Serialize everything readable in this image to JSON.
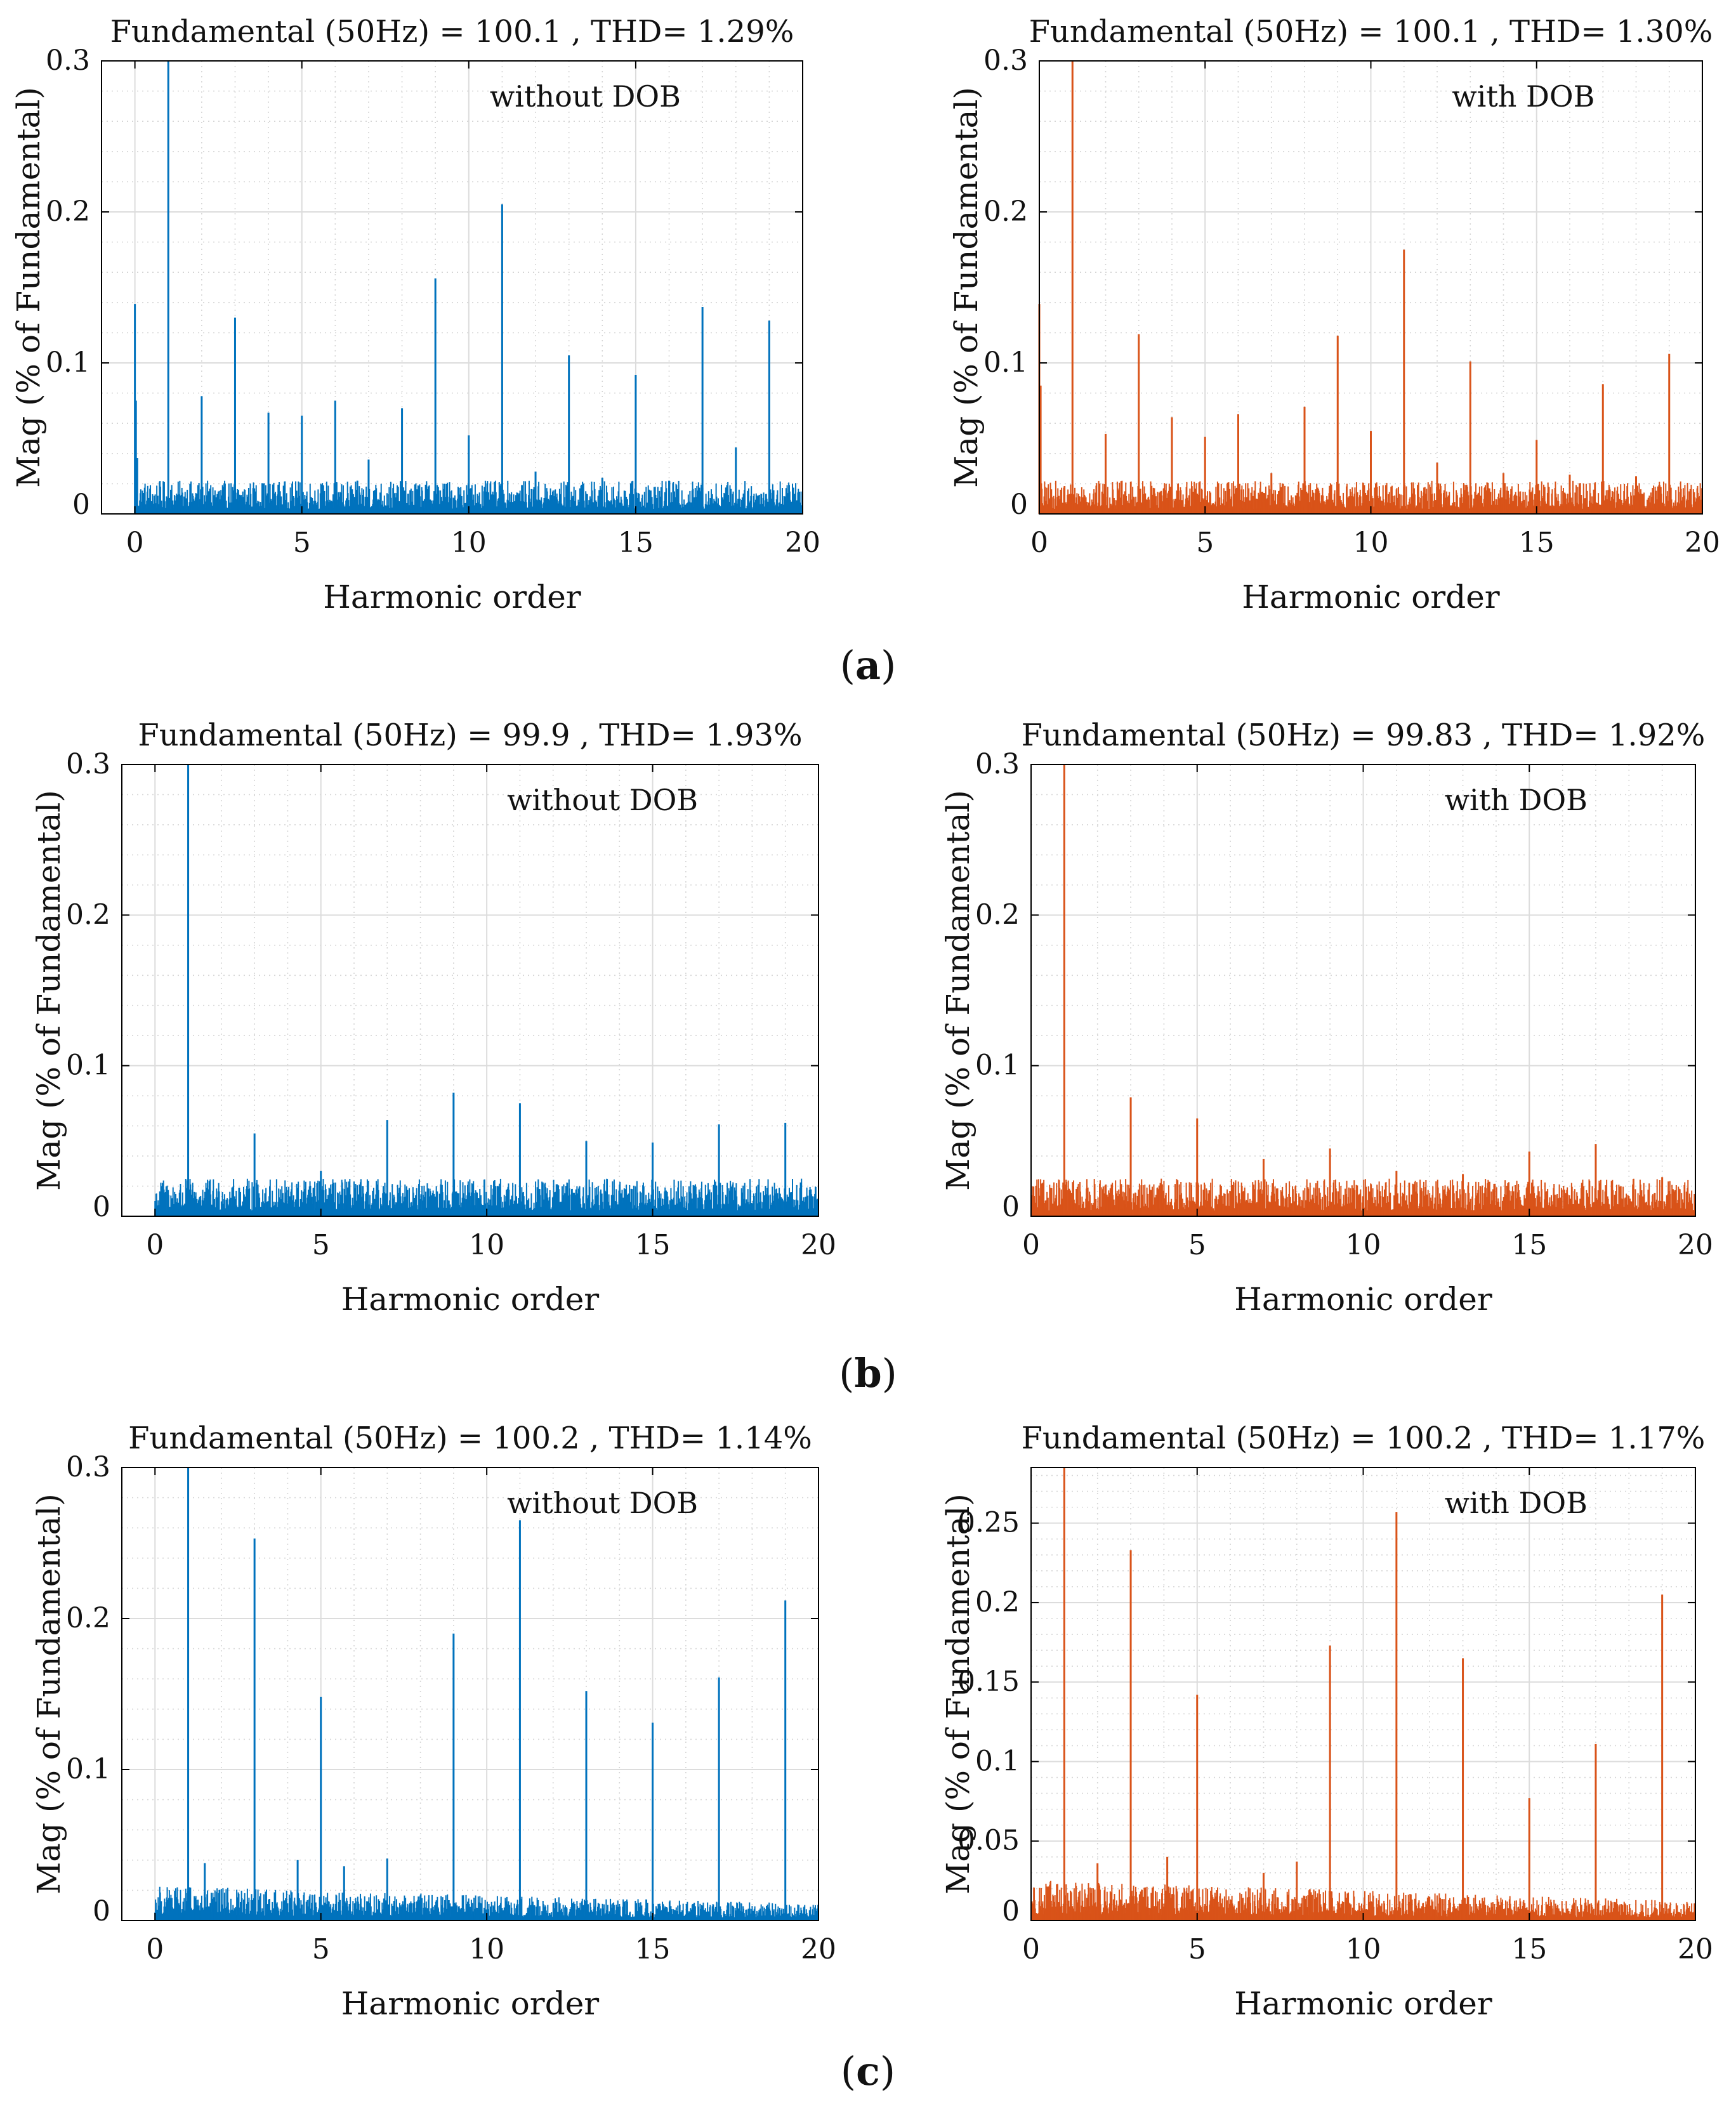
{
  "figure": {
    "panel_labels": [
      {
        "open": "(",
        "letter": "a",
        "close": ")"
      },
      {
        "open": "(",
        "letter": "b",
        "close": ")"
      },
      {
        "open": "(",
        "letter": "c",
        "close": ")"
      }
    ]
  },
  "colors": {
    "blue": "#0072BD",
    "orange": "#D95319",
    "grid": "#dcdcdc",
    "axis": "#000000"
  },
  "chart_data": [
    {
      "type": "bar",
      "row": "a",
      "side": "left",
      "title": "Fundamental (50Hz) = 100.1 , THD= 1.29%",
      "annotation": "without DOB",
      "xlabel": "Harmonic order",
      "ylabel": "Mag (% of Fundamental)",
      "xlim": [
        -1,
        20
      ],
      "ylim": [
        0,
        0.3
      ],
      "xticks": [
        0,
        5,
        10,
        15,
        20
      ],
      "xtick_labels": [
        "0",
        "5",
        "10",
        "15",
        "20"
      ],
      "yticks": [
        0,
        0.1,
        0.2,
        0.3
      ],
      "ytick_labels": [
        "0",
        "0.1",
        "0.2",
        "0.3"
      ],
      "color": "blue",
      "noise_level": 0.022,
      "peaks": [
        {
          "x": 0,
          "y": 0.139
        },
        {
          "x": 0.03,
          "y": 0.075
        },
        {
          "x": 0.07,
          "y": 0.037
        },
        {
          "x": 1,
          "y": 0.3
        },
        {
          "x": 2,
          "y": 0.078
        },
        {
          "x": 3,
          "y": 0.13
        },
        {
          "x": 4,
          "y": 0.067
        },
        {
          "x": 5,
          "y": 0.065
        },
        {
          "x": 6,
          "y": 0.075
        },
        {
          "x": 7,
          "y": 0.036
        },
        {
          "x": 8,
          "y": 0.07
        },
        {
          "x": 9,
          "y": 0.156
        },
        {
          "x": 10,
          "y": 0.052
        },
        {
          "x": 11,
          "y": 0.205
        },
        {
          "x": 12,
          "y": 0.028
        },
        {
          "x": 13,
          "y": 0.105
        },
        {
          "x": 14,
          "y": 0.024
        },
        {
          "x": 15,
          "y": 0.092
        },
        {
          "x": 16,
          "y": 0.022
        },
        {
          "x": 17,
          "y": 0.137
        },
        {
          "x": 18,
          "y": 0.044
        },
        {
          "x": 19,
          "y": 0.128
        }
      ]
    },
    {
      "type": "bar",
      "row": "a",
      "side": "right",
      "title": "Fundamental (50Hz) = 100.1 , THD= 1.30%",
      "annotation": "with DOB",
      "xlabel": "Harmonic order",
      "ylabel": "Mag (% of Fundamental)",
      "xlim": [
        0,
        20
      ],
      "ylim": [
        0,
        0.3
      ],
      "xticks": [
        0,
        5,
        10,
        15,
        20
      ],
      "xtick_labels": [
        "0",
        "5",
        "10",
        "15",
        "20"
      ],
      "yticks": [
        0,
        0.1,
        0.2,
        0.3
      ],
      "ytick_labels": [
        "0",
        "0.1",
        "0.2",
        "0.3"
      ],
      "color": "orange",
      "noise_level": 0.022,
      "peaks": [
        {
          "x": 0,
          "y": 0.139
        },
        {
          "x": 0.04,
          "y": 0.085
        },
        {
          "x": 1,
          "y": 0.3
        },
        {
          "x": 2,
          "y": 0.053
        },
        {
          "x": 3,
          "y": 0.119
        },
        {
          "x": 4,
          "y": 0.064
        },
        {
          "x": 5,
          "y": 0.051
        },
        {
          "x": 6,
          "y": 0.066
        },
        {
          "x": 7,
          "y": 0.027
        },
        {
          "x": 8,
          "y": 0.071
        },
        {
          "x": 9,
          "y": 0.118
        },
        {
          "x": 10,
          "y": 0.055
        },
        {
          "x": 11,
          "y": 0.175
        },
        {
          "x": 12,
          "y": 0.034
        },
        {
          "x": 13,
          "y": 0.101
        },
        {
          "x": 14,
          "y": 0.027
        },
        {
          "x": 15,
          "y": 0.049
        },
        {
          "x": 16,
          "y": 0.026
        },
        {
          "x": 17,
          "y": 0.086
        },
        {
          "x": 18,
          "y": 0.025
        },
        {
          "x": 19,
          "y": 0.106
        }
      ]
    },
    {
      "type": "bar",
      "row": "b",
      "side": "left",
      "title": "Fundamental (50Hz) = 99.9 , THD= 1.93%",
      "annotation": "without DOB",
      "xlabel": "Harmonic order",
      "ylabel": "Mag (% of Fundamental)",
      "xlim": [
        -1,
        20
      ],
      "ylim": [
        0,
        0.3
      ],
      "xticks": [
        0,
        5,
        10,
        15,
        20
      ],
      "xtick_labels": [
        "0",
        "5",
        "10",
        "15",
        "20"
      ],
      "yticks": [
        0,
        0.1,
        0.2,
        0.3
      ],
      "ytick_labels": [
        "0",
        "0.1",
        "0.2",
        "0.3"
      ],
      "color": "blue",
      "noise_level": 0.025,
      "peaks": [
        {
          "x": 1,
          "y": 0.3
        },
        {
          "x": 3,
          "y": 0.055
        },
        {
          "x": 5,
          "y": 0.03
        },
        {
          "x": 7,
          "y": 0.064
        },
        {
          "x": 9,
          "y": 0.082
        },
        {
          "x": 11,
          "y": 0.075
        },
        {
          "x": 13,
          "y": 0.05
        },
        {
          "x": 15,
          "y": 0.049
        },
        {
          "x": 17,
          "y": 0.061
        },
        {
          "x": 19,
          "y": 0.062
        }
      ]
    },
    {
      "type": "bar",
      "row": "b",
      "side": "right",
      "title": "Fundamental (50Hz) = 99.83 , THD= 1.92%",
      "annotation": "with DOB",
      "xlabel": "Harmonic order",
      "ylabel": "Mag (% of Fundamental)",
      "xlim": [
        0,
        20
      ],
      "ylim": [
        0,
        0.3
      ],
      "xticks": [
        0,
        5,
        10,
        15,
        20
      ],
      "xtick_labels": [
        "0",
        "5",
        "10",
        "15",
        "20"
      ],
      "yticks": [
        0,
        0.1,
        0.2,
        0.3
      ],
      "ytick_labels": [
        "0",
        "0.1",
        "0.2",
        "0.3"
      ],
      "color": "orange",
      "noise_level": 0.025,
      "peaks": [
        {
          "x": 1,
          "y": 0.3
        },
        {
          "x": 3,
          "y": 0.079
        },
        {
          "x": 5,
          "y": 0.065
        },
        {
          "x": 7,
          "y": 0.038
        },
        {
          "x": 9,
          "y": 0.045
        },
        {
          "x": 11,
          "y": 0.03
        },
        {
          "x": 13,
          "y": 0.028
        },
        {
          "x": 15,
          "y": 0.043
        },
        {
          "x": 17,
          "y": 0.048
        },
        {
          "x": 19,
          "y": 0.026
        }
      ]
    },
    {
      "type": "bar",
      "row": "c",
      "side": "left",
      "title": "Fundamental (50Hz) = 100.2 , THD= 1.14%",
      "annotation": "without DOB",
      "xlabel": "Harmonic order",
      "ylabel": "Mag (% of Fundamental)",
      "xlim": [
        -1,
        20
      ],
      "ylim": [
        0,
        0.3
      ],
      "xticks": [
        0,
        5,
        10,
        15,
        20
      ],
      "xtick_labels": [
        "0",
        "5",
        "10",
        "15",
        "20"
      ],
      "yticks": [
        0,
        0.1,
        0.2,
        0.3
      ],
      "ytick_labels": [
        "0",
        "0.1",
        "0.2",
        "0.3"
      ],
      "color": "blue",
      "noise_level": 0.02,
      "noise_decay": true,
      "peaks": [
        {
          "x": 1,
          "y": 0.3
        },
        {
          "x": 1.5,
          "y": 0.038
        },
        {
          "x": 3,
          "y": 0.253
        },
        {
          "x": 4.3,
          "y": 0.04
        },
        {
          "x": 5,
          "y": 0.148
        },
        {
          "x": 5.7,
          "y": 0.036
        },
        {
          "x": 7,
          "y": 0.041
        },
        {
          "x": 9,
          "y": 0.19
        },
        {
          "x": 11,
          "y": 0.265
        },
        {
          "x": 13,
          "y": 0.152
        },
        {
          "x": 15,
          "y": 0.131
        },
        {
          "x": 17,
          "y": 0.161
        },
        {
          "x": 19,
          "y": 0.212
        }
      ]
    },
    {
      "type": "bar",
      "row": "c",
      "side": "right",
      "title": "Fundamental (50Hz) = 100.2 , THD= 1.17%",
      "annotation": "with DOB",
      "xlabel": "Harmonic order",
      "ylabel": "Mag (% of Fundamental)",
      "xlim": [
        0,
        20
      ],
      "ylim": [
        0,
        0.285
      ],
      "xticks": [
        0,
        5,
        10,
        15,
        20
      ],
      "xtick_labels": [
        "0",
        "5",
        "10",
        "15",
        "20"
      ],
      "yticks": [
        0,
        0.05,
        0.1,
        0.15,
        0.2,
        0.25
      ],
      "ytick_labels": [
        "0",
        "0.05",
        "0.1",
        "0.15",
        "0.2",
        "0.25"
      ],
      "color": "orange",
      "noise_level": 0.022,
      "noise_decay": true,
      "peaks": [
        {
          "x": 1,
          "y": 0.285
        },
        {
          "x": 2,
          "y": 0.036
        },
        {
          "x": 3,
          "y": 0.233
        },
        {
          "x": 4.1,
          "y": 0.04
        },
        {
          "x": 5,
          "y": 0.142
        },
        {
          "x": 7,
          "y": 0.03
        },
        {
          "x": 8,
          "y": 0.037
        },
        {
          "x": 9,
          "y": 0.173
        },
        {
          "x": 11,
          "y": 0.257
        },
        {
          "x": 13,
          "y": 0.165
        },
        {
          "x": 15,
          "y": 0.077
        },
        {
          "x": 17,
          "y": 0.111
        },
        {
          "x": 19,
          "y": 0.205
        }
      ]
    }
  ]
}
